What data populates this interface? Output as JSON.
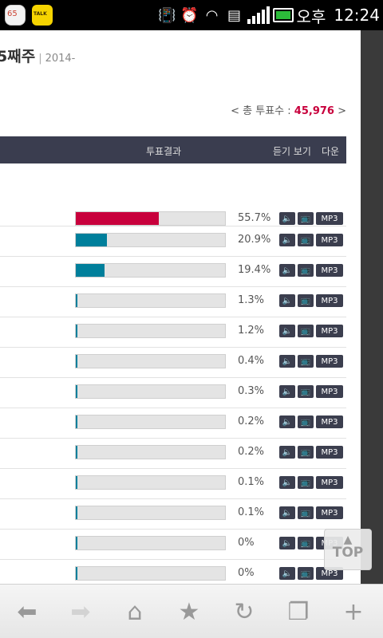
{
  "statusbar": {
    "mail_badge": "65",
    "talk_label": "TALK",
    "ampm": "오후",
    "time": "12:24"
  },
  "page": {
    "title": "5째주",
    "subtitle": "2014-",
    "total_prefix": "< 총 투표수 : ",
    "total_value": "45,976",
    "total_suffix": " >"
  },
  "table": {
    "header_result": "투표결과",
    "header_listen": "듣기 보기",
    "header_down": "다운",
    "mp3_label": "MP3",
    "rows": [
      {
        "percent_label": "55.7%",
        "percent": 55.7,
        "color": "#c8003c"
      },
      {
        "percent_label": "20.9%",
        "percent": 20.9,
        "color": "#007f9b"
      },
      {
        "percent_label": "19.4%",
        "percent": 19.4,
        "color": "#007f9b"
      },
      {
        "percent_label": "1.3%",
        "percent": 1.3,
        "color": "#007f9b"
      },
      {
        "percent_label": "1.2%",
        "percent": 1.2,
        "color": "#007f9b"
      },
      {
        "percent_label": "0.4%",
        "percent": 0.4,
        "color": "#007f9b"
      },
      {
        "percent_label": "0.3%",
        "percent": 0.3,
        "color": "#007f9b"
      },
      {
        "percent_label": "0.2%",
        "percent": 0.2,
        "color": "#007f9b"
      },
      {
        "percent_label": "0.2%",
        "percent": 0.2,
        "color": "#007f9b"
      },
      {
        "percent_label": "0.1%",
        "percent": 0.1,
        "color": "#007f9b"
      },
      {
        "percent_label": "0.1%",
        "percent": 0.1,
        "color": "#007f9b"
      },
      {
        "percent_label": "0%",
        "percent": 0,
        "color": "#007f9b"
      },
      {
        "percent_label": "0%",
        "percent": 0,
        "color": "#007f9b"
      }
    ]
  },
  "top_button": {
    "label": "TOP"
  },
  "bottom_nav": [
    "back-icon",
    "forward-icon",
    "home-icon",
    "bookmark-star-icon",
    "refresh-icon",
    "tabs-icon",
    "add-icon"
  ]
}
